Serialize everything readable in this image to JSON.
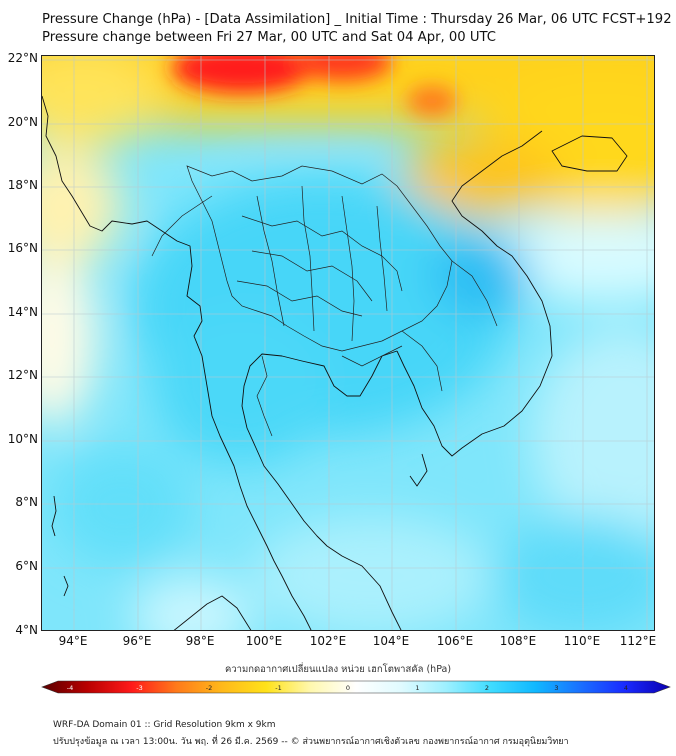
{
  "title": "Pressure Change (hPa) - [Data Assimilation] _ Initial Time : Thursday 26 Mar, 06 UTC FCST+192",
  "subtitle": "Pressure change between Fri 27 Mar, 00 UTC and Sat 04 Apr, 00 UTC",
  "lat_labels": [
    "22°N",
    "20°N",
    "18°N",
    "16°N",
    "14°N",
    "12°N",
    "10°N",
    "8°N",
    "6°N",
    "4°N"
  ],
  "lon_labels": [
    "94°E",
    "96°E",
    "98°E",
    "100°E",
    "102°E",
    "104°E",
    "106°E",
    "108°E",
    "110°E",
    "112°E"
  ],
  "colorbar": {
    "label": "ความกดอากาศเปลี่ยนแปลง หน่วย เฮกโตพาสคัล (hPa)",
    "ticks": [
      "-4",
      "-3",
      "-2",
      "-1",
      "0",
      "1",
      "2",
      "3",
      "4"
    ],
    "min": -4,
    "max": 4,
    "colors": [
      "#5a0000",
      "#b80000",
      "#ff1a1a",
      "#ff7a1a",
      "#ffb81a",
      "#ffe21a",
      "#fff8b0",
      "#ffffff",
      "#e0fbff",
      "#9ef0ff",
      "#40dcff",
      "#10b8ff",
      "#1a70ff",
      "#1a2aff",
      "#0a00b0"
    ]
  },
  "footer": {
    "line1": "WRF-DA Domain 01 :: Grid Resolution 9km x 9km",
    "line2": "ปรับปรุงข้อมูล ณ เวลา 13:00น. วัน พฤ. ที่ 26 มี.ค. 2569 -- © ส่วนพยากรณ์อากาศเชิงตัวเลข กองพยากรณ์อากาศ กรมอุตุนิยมวิทยา"
  }
}
